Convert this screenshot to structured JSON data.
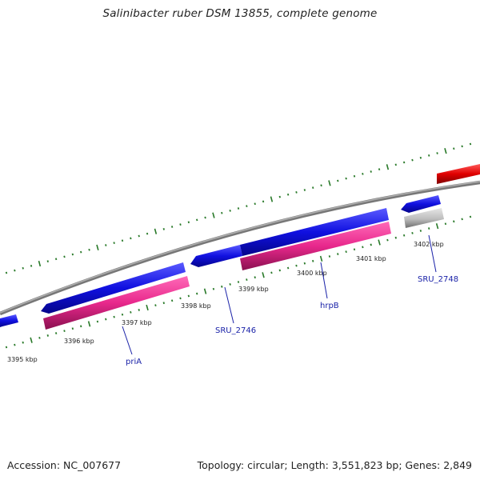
{
  "title": "Salinibacter ruber DSM 13855, complete genome",
  "footer": {
    "accession": "Accession: NC_007677",
    "summary": "Topology: circular; Length: 3,551,823 bp; Genes: 2,849"
  },
  "colors": {
    "backbone": "#8a8a8a",
    "cds": "#1010e0",
    "gene": "#e8288c",
    "rna": "#e00000",
    "pseudo": "#b8b8b8",
    "tick": "#2a7a2a",
    "label_line": "#1a22a8"
  },
  "ticks": [
    {
      "label": "3395 kbp"
    },
    {
      "label": "3396 kbp"
    },
    {
      "label": "3397 kbp"
    },
    {
      "label": "3398 kbp"
    },
    {
      "label": "3399 kbp"
    },
    {
      "label": "3400 kbp"
    },
    {
      "label": "3401 kbp"
    },
    {
      "label": "3402 kbp"
    }
  ],
  "gene_labels": [
    {
      "text": "priA"
    },
    {
      "text": "SRU_2746"
    },
    {
      "text": "hrpB"
    },
    {
      "text": "SRU_2748"
    }
  ]
}
